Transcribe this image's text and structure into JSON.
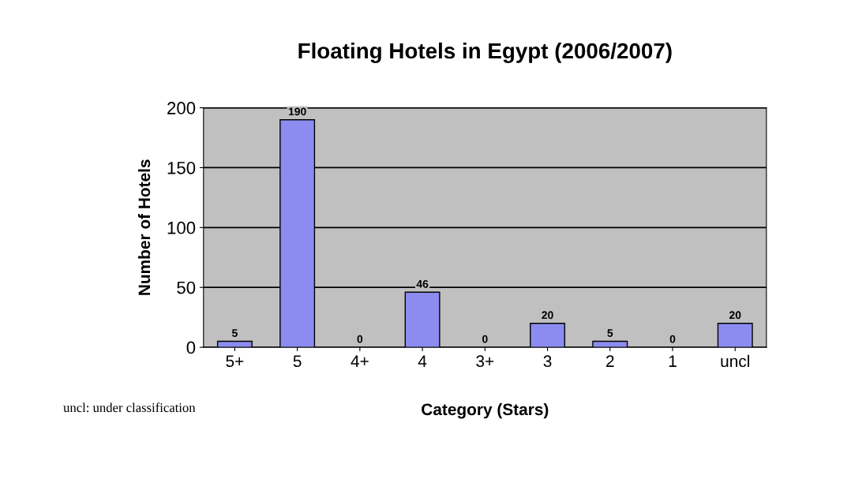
{
  "chart_data": {
    "type": "bar",
    "title": "Floating Hotels in Egypt (2006/2007)",
    "xlabel": "Category (Stars)",
    "ylabel": "Number of Hotels",
    "categories": [
      "5+",
      "5",
      "4+",
      "4",
      "3+",
      "3",
      "2",
      "1",
      "uncl"
    ],
    "values": [
      5,
      190,
      0,
      46,
      0,
      20,
      5,
      0,
      20
    ],
    "color": "#8c8cf0",
    "ylim": [
      0,
      200
    ],
    "yticks": [
      0,
      50,
      100,
      150,
      200
    ],
    "grid": "y",
    "data_labels": true,
    "legend": false,
    "annotations": [
      "uncl: under classification"
    ]
  }
}
